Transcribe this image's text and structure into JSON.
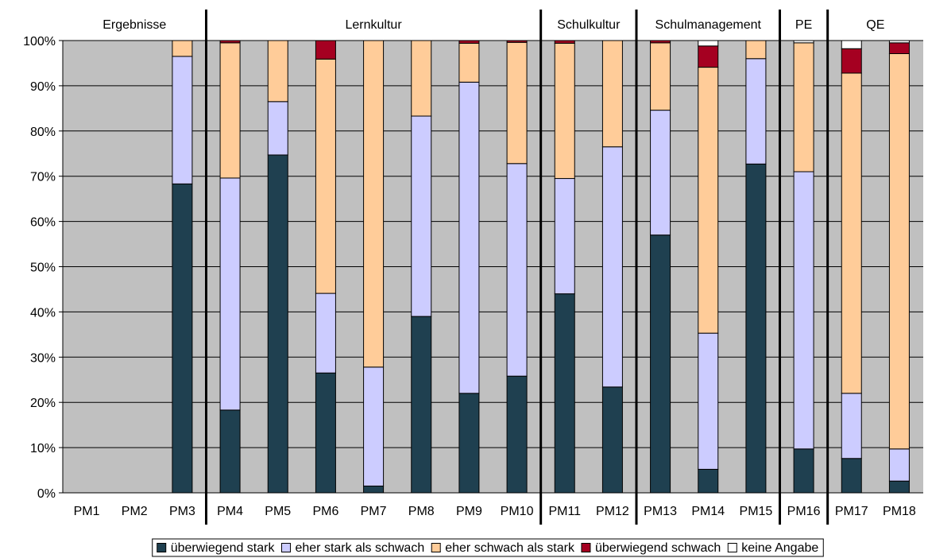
{
  "chart_data": {
    "type": "bar",
    "stacked": true,
    "percent": true,
    "ylim": [
      0,
      100
    ],
    "yticks": [
      0,
      10,
      20,
      30,
      40,
      50,
      60,
      70,
      80,
      90,
      100
    ],
    "ytick_labels": [
      "0%",
      "10%",
      "20%",
      "30%",
      "40%",
      "50%",
      "60%",
      "70%",
      "80%",
      "90%",
      "100%"
    ],
    "grid": true,
    "legend_position": "bottom",
    "categories": [
      "PM1",
      "PM2",
      "PM3",
      "PM4",
      "PM5",
      "PM6",
      "PM7",
      "PM8",
      "PM9",
      "PM10",
      "PM11",
      "PM12",
      "PM13",
      "PM14",
      "PM15",
      "PM16",
      "PM17",
      "PM18"
    ],
    "groups": [
      {
        "label": "Ergebnisse",
        "start": 0,
        "end": 2
      },
      {
        "label": "Lernkultur",
        "start": 3,
        "end": 9
      },
      {
        "label": "Schulkultur",
        "start": 10,
        "end": 11
      },
      {
        "label": "Schulmanagement",
        "start": 12,
        "end": 14
      },
      {
        "label": "PE",
        "start": 15,
        "end": 15
      },
      {
        "label": "QE",
        "start": 16,
        "end": 17
      }
    ],
    "series": [
      {
        "name": "überwiegend stark",
        "color": "#1f4050",
        "values": [
          0,
          0,
          68.3,
          18.3,
          74.7,
          26.5,
          1.5,
          39,
          22,
          25.8,
          44,
          23.4,
          57,
          5.2,
          72.7,
          9.7,
          7.6,
          2.6
        ]
      },
      {
        "name": "eher stark als schwach",
        "color": "#ccccff",
        "values": [
          0,
          0,
          28.2,
          51.3,
          11.8,
          17.6,
          26.3,
          44.3,
          68.8,
          47,
          25.5,
          53.1,
          27.6,
          30.1,
          23.3,
          61.3,
          14.4,
          7.1
        ]
      },
      {
        "name": "eher schwach als stark",
        "color": "#ffcc99",
        "values": [
          0,
          0,
          3.5,
          29.9,
          13.5,
          51.8,
          72.2,
          16.7,
          8.6,
          26.8,
          29.9,
          23.5,
          14.9,
          58.8,
          4,
          28.5,
          70.8,
          87.4
        ]
      },
      {
        "name": "überwiegend schwach",
        "color": "#a50021",
        "values": [
          0,
          0,
          0,
          0.5,
          0,
          4.1,
          0,
          0,
          0.6,
          0.4,
          0.6,
          0,
          0.5,
          4.7,
          0,
          0,
          5.4,
          2.4
        ]
      },
      {
        "name": "keine Angabe",
        "color": "#ffffff",
        "values": [
          0,
          0,
          0,
          0,
          0,
          0,
          0,
          0,
          0,
          0,
          0,
          0,
          0,
          1.2,
          0,
          0.5,
          1.8,
          0.5
        ]
      }
    ]
  }
}
